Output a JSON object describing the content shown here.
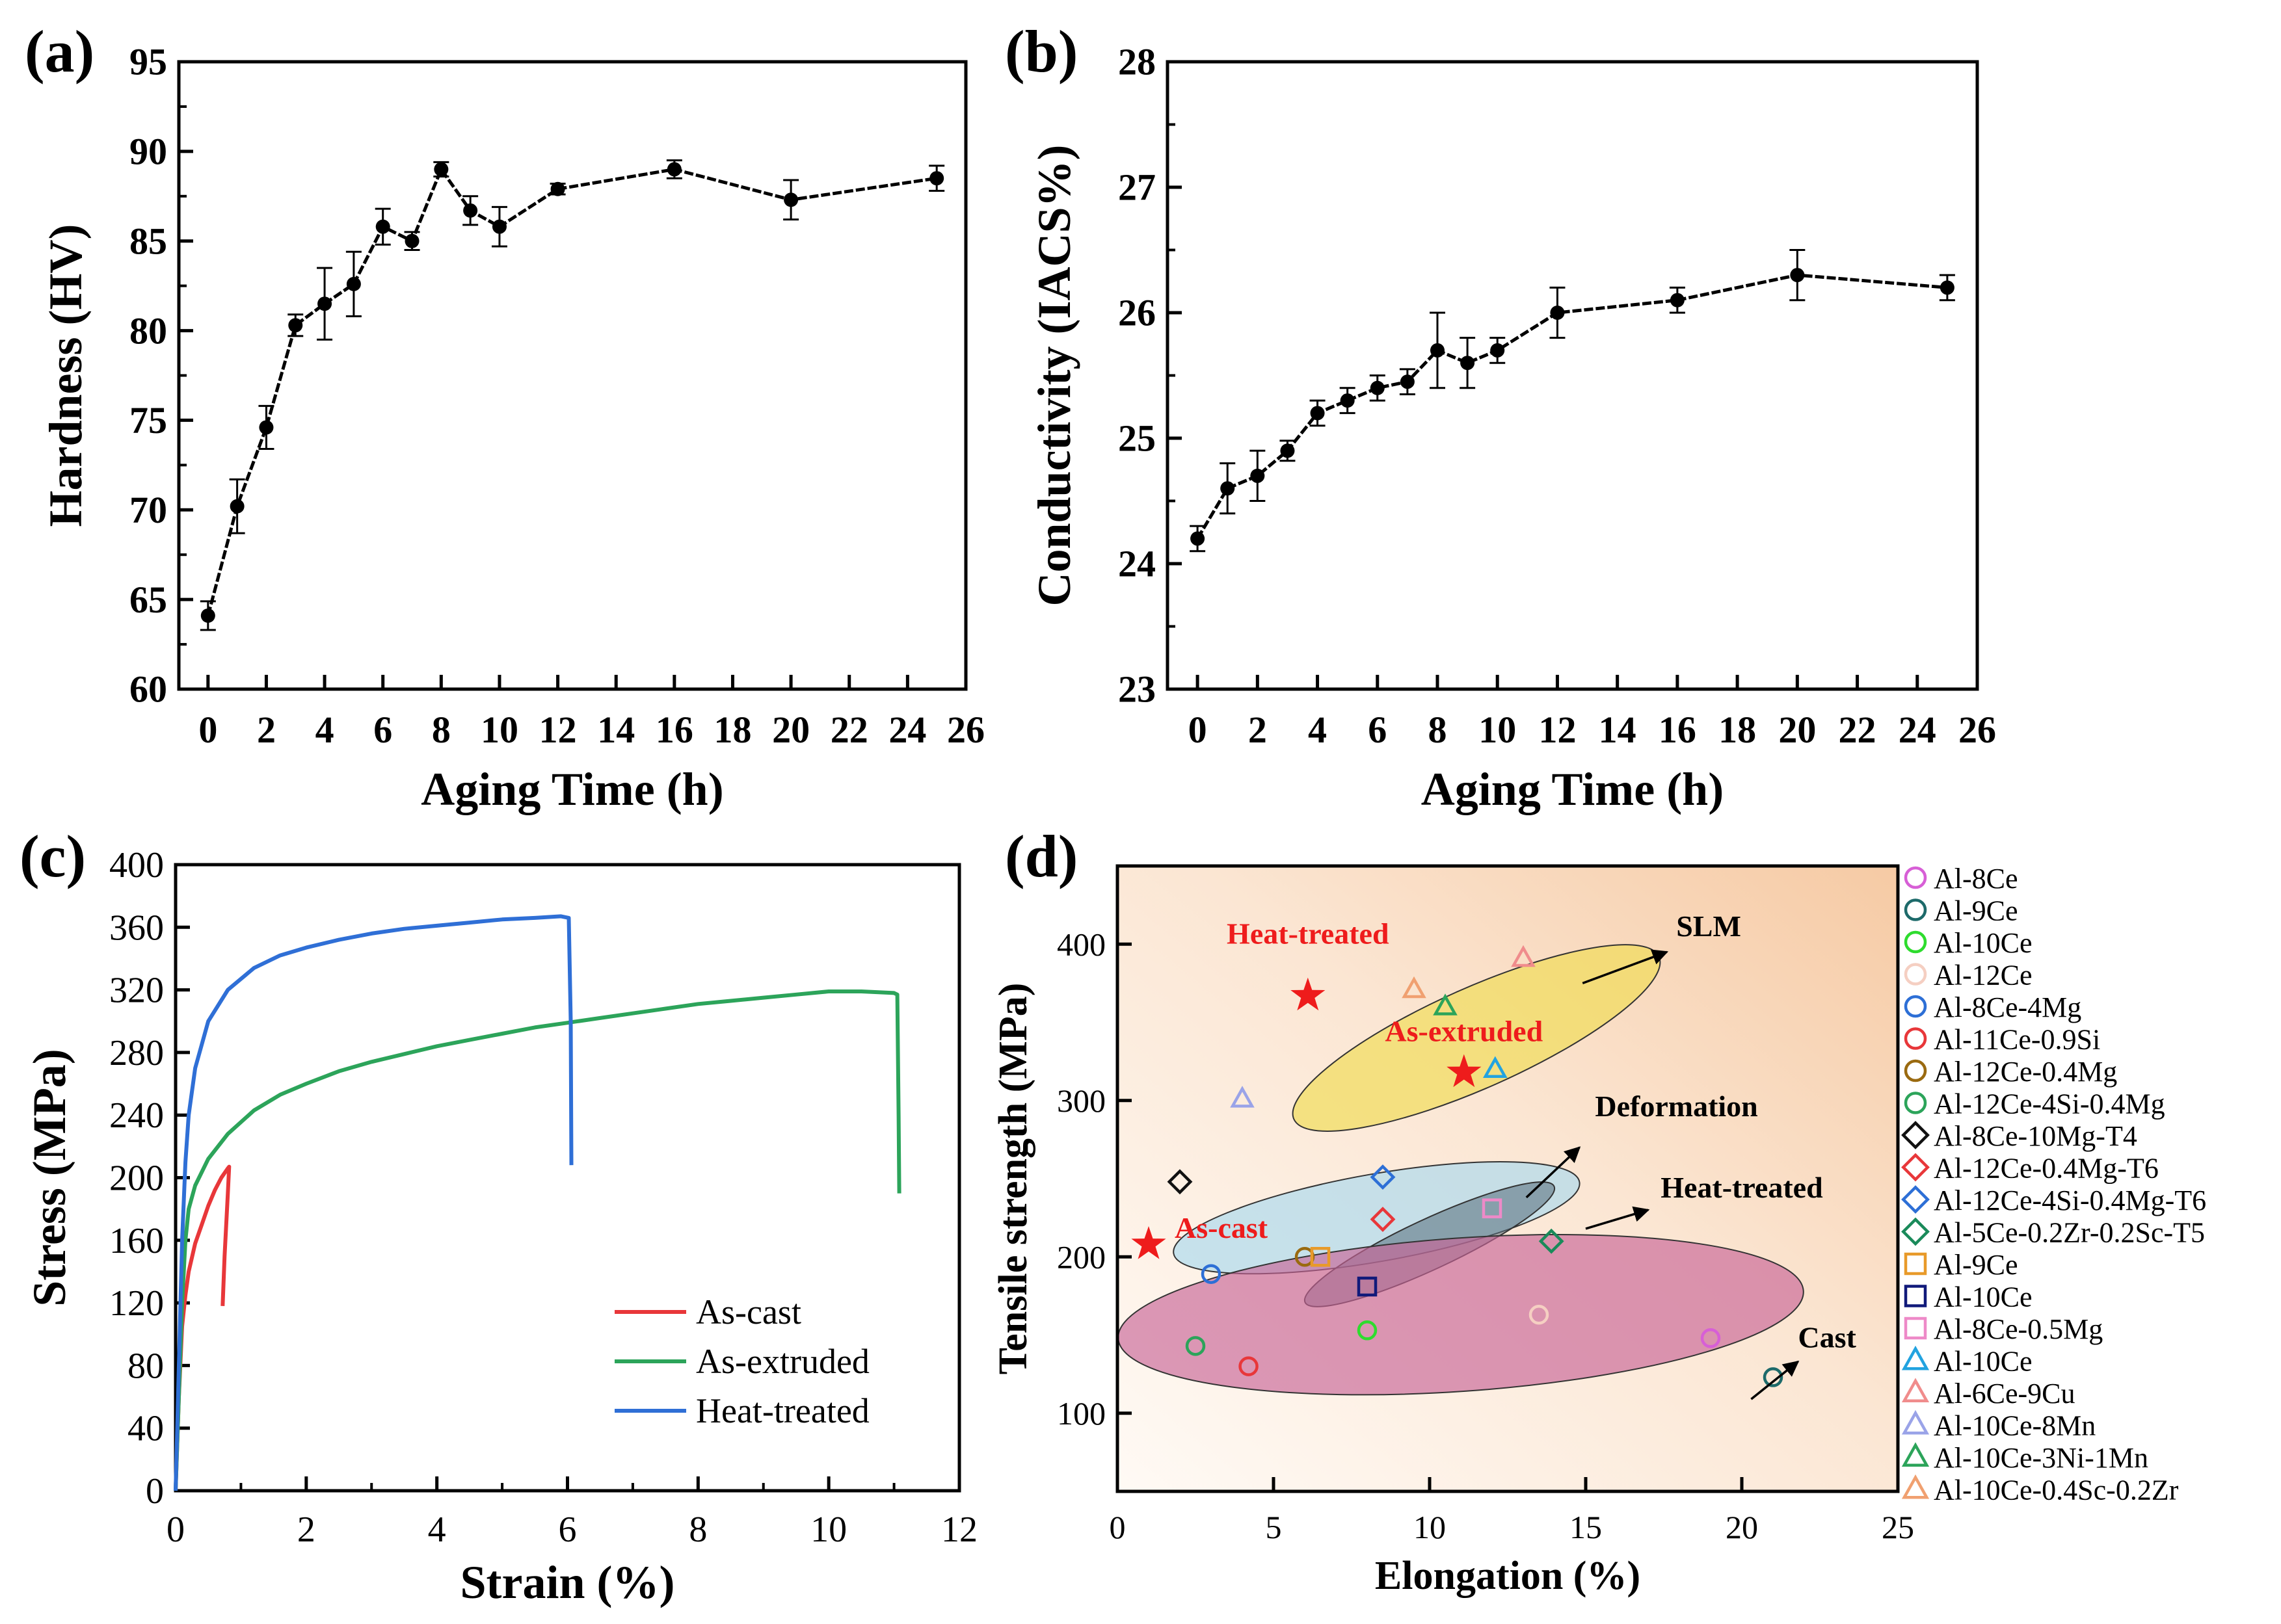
{
  "chart_data": [
    {
      "panel": "(a)",
      "type": "line",
      "xlabel": "Aging Time (h)",
      "ylabel": "Hardness (HV)",
      "xlim": [
        -1,
        26
      ],
      "ylim": [
        60,
        95
      ],
      "xticks": [
        0,
        2,
        4,
        6,
        8,
        10,
        12,
        14,
        16,
        18,
        20,
        22,
        24,
        26
      ],
      "yticks": [
        60,
        65,
        70,
        75,
        80,
        85,
        90,
        95
      ],
      "x": [
        0,
        1,
        2,
        3,
        4,
        5,
        6,
        7,
        8,
        9,
        10,
        12,
        16,
        20,
        25
      ],
      "y": [
        64.1,
        70.2,
        74.6,
        80.3,
        81.5,
        82.6,
        85.8,
        85.0,
        89.0,
        86.7,
        85.8,
        87.9,
        89.0,
        87.3,
        88.5
      ],
      "err": [
        0.8,
        1.5,
        1.2,
        0.6,
        2.0,
        1.8,
        1.0,
        0.5,
        0.4,
        0.8,
        1.1,
        0.3,
        0.5,
        1.1,
        0.7
      ]
    },
    {
      "panel": "(b)",
      "type": "line",
      "xlabel": "Aging Time (h)",
      "ylabel": "Conductivity (IACS%)",
      "xlim": [
        -1,
        26
      ],
      "ylim": [
        23,
        28
      ],
      "xticks": [
        0,
        2,
        4,
        6,
        8,
        10,
        12,
        14,
        16,
        18,
        20,
        22,
        24,
        26
      ],
      "yticks": [
        23,
        24,
        25,
        26,
        27,
        28
      ],
      "x": [
        0,
        1,
        2,
        3,
        4,
        5,
        6,
        7,
        8,
        9,
        10,
        12,
        16,
        20,
        25
      ],
      "y": [
        24.2,
        24.6,
        24.7,
        24.9,
        25.2,
        25.3,
        25.4,
        25.45,
        25.7,
        25.6,
        25.7,
        26.0,
        26.1,
        26.3,
        26.2
      ],
      "err": [
        0.1,
        0.2,
        0.2,
        0.08,
        0.1,
        0.1,
        0.1,
        0.1,
        0.3,
        0.2,
        0.1,
        0.2,
        0.1,
        0.2,
        0.1
      ]
    },
    {
      "panel": "(c)",
      "type": "line",
      "xlabel": "Strain (%)",
      "ylabel": "Stress (MPa)",
      "xlim": [
        0,
        12
      ],
      "ylim": [
        0,
        400
      ],
      "xticks": [
        0,
        2,
        4,
        6,
        8,
        10,
        12
      ],
      "yticks": [
        0,
        40,
        80,
        120,
        160,
        200,
        240,
        280,
        320,
        360,
        400
      ],
      "series": [
        {
          "name": "As-cast",
          "color": "#e8373a",
          "points": [
            [
              0,
              0
            ],
            [
              0.05,
              60
            ],
            [
              0.1,
              105
            ],
            [
              0.15,
              125
            ],
            [
              0.2,
              140
            ],
            [
              0.3,
              158
            ],
            [
              0.4,
              170
            ],
            [
              0.5,
              182
            ],
            [
              0.6,
              192
            ],
            [
              0.7,
              200
            ],
            [
              0.8,
              206
            ],
            [
              0.82,
              207
            ],
            [
              0.8,
              190
            ],
            [
              0.75,
              150
            ],
            [
              0.72,
              118
            ]
          ]
        },
        {
          "name": "As-extruded",
          "color": "#2ca45a",
          "points": [
            [
              0,
              0
            ],
            [
              0.05,
              60
            ],
            [
              0.1,
              120
            ],
            [
              0.15,
              160
            ],
            [
              0.2,
              180
            ],
            [
              0.3,
              195
            ],
            [
              0.5,
              212
            ],
            [
              0.8,
              228
            ],
            [
              1.2,
              243
            ],
            [
              1.6,
              253
            ],
            [
              2,
              260
            ],
            [
              2.5,
              268
            ],
            [
              3,
              274
            ],
            [
              3.5,
              279
            ],
            [
              4,
              284
            ],
            [
              4.5,
              288
            ],
            [
              5,
              292
            ],
            [
              5.5,
              296
            ],
            [
              6,
              299
            ],
            [
              6.5,
              302
            ],
            [
              7,
              305
            ],
            [
              7.5,
              308
            ],
            [
              8,
              311
            ],
            [
              8.5,
              313
            ],
            [
              9,
              315
            ],
            [
              9.5,
              317
            ],
            [
              10,
              319
            ],
            [
              10.5,
              319
            ],
            [
              11,
              318
            ],
            [
              11.05,
              317
            ],
            [
              11.07,
              240
            ],
            [
              11.08,
              190
            ]
          ]
        },
        {
          "name": "Heat-treated",
          "color": "#2f6fd6",
          "points": [
            [
              0,
              0
            ],
            [
              0.05,
              80
            ],
            [
              0.1,
              160
            ],
            [
              0.15,
              210
            ],
            [
              0.2,
              240
            ],
            [
              0.3,
              270
            ],
            [
              0.5,
              300
            ],
            [
              0.8,
              320
            ],
            [
              1.2,
              334
            ],
            [
              1.6,
              342
            ],
            [
              2,
              347
            ],
            [
              2.5,
              352
            ],
            [
              3,
              356
            ],
            [
              3.5,
              359
            ],
            [
              4,
              361
            ],
            [
              4.5,
              363
            ],
            [
              5,
              365
            ],
            [
              5.5,
              366
            ],
            [
              5.9,
              367
            ],
            [
              6.02,
              366
            ],
            [
              6.05,
              300
            ],
            [
              6.06,
              208
            ]
          ]
        }
      ]
    },
    {
      "panel": "(d)",
      "type": "scatter",
      "xlabel": "Elongation (%)",
      "ylabel": "Tensile strength (MPa)",
      "xlim": [
        0,
        25
      ],
      "ylim": [
        50,
        450
      ],
      "xticks": [
        0,
        5,
        10,
        15,
        20,
        25
      ],
      "yticks": [
        100,
        200,
        300,
        400
      ],
      "regions": [
        {
          "label": "SLM",
          "cx": 11.5,
          "cy": 340,
          "rx": 6.4,
          "ry": 32,
          "angle": -24,
          "color": "#f0dc52"
        },
        {
          "label": "Deformation",
          "cx": 8.3,
          "cy": 225,
          "rx": 6.6,
          "ry": 28,
          "angle": -10,
          "color": "#a9d8ee"
        },
        {
          "label": "Heat-treated",
          "cx": 10,
          "cy": 208,
          "rx": 4.4,
          "ry": 16,
          "angle": -25,
          "color": "#556b7a"
        },
        {
          "label": "Cast",
          "cx": 11,
          "cy": 163,
          "rx": 11,
          "ry": 49,
          "angle": -4,
          "color": "#c86496"
        }
      ],
      "stars": [
        {
          "label": "Heat-treated",
          "x": 6.1,
          "y": 367
        },
        {
          "label": "As-extruded",
          "x": 11.1,
          "y": 318
        },
        {
          "label": "As-cast",
          "x": 1.0,
          "y": 208
        }
      ],
      "legend": [
        {
          "label": "Al-8Ce",
          "marker": "circle",
          "color": "#d75fd6",
          "points": [
            [
              19,
              148
            ]
          ]
        },
        {
          "label": "Al-9Ce",
          "marker": "circle",
          "color": "#1d6a6a",
          "points": [
            [
              21,
              123
            ]
          ]
        },
        {
          "label": "Al-10Ce",
          "marker": "circle",
          "color": "#2edc2e",
          "points": [
            [
              8,
              153
            ]
          ]
        },
        {
          "label": "Al-12Ce",
          "marker": "circle",
          "color": "#f5cfc2",
          "points": [
            [
              13.5,
              163
            ]
          ]
        },
        {
          "label": "Al-8Ce-4Mg",
          "marker": "circle",
          "color": "#2d6fd6",
          "points": [
            [
              3,
              189
            ]
          ]
        },
        {
          "label": "Al-11Ce-0.9Si",
          "marker": "circle",
          "color": "#e8373a",
          "points": [
            [
              4.2,
              130
            ]
          ]
        },
        {
          "label": "Al-12Ce-0.4Mg",
          "marker": "circle",
          "color": "#9a6a10",
          "points": [
            [
              6,
              200
            ]
          ]
        },
        {
          "label": "Al-12Ce-4Si-0.4Mg",
          "marker": "circle",
          "color": "#2ca45a",
          "points": [
            [
              2.5,
              143
            ]
          ]
        },
        {
          "label": "Al-8Ce-10Mg-T4",
          "marker": "diamond",
          "color": "#111111",
          "points": [
            [
              2,
              248
            ]
          ]
        },
        {
          "label": "Al-12Ce-0.4Mg-T6",
          "marker": "diamond",
          "color": "#e8373a",
          "points": [
            [
              8.5,
              224
            ]
          ]
        },
        {
          "label": "Al-12Ce-4Si-0.4Mg-T6",
          "marker": "diamond",
          "color": "#2d6fd6",
          "points": [
            [
              8.5,
              251
            ]
          ]
        },
        {
          "label": "Al-5Ce-0.2Zr-0.2Sc-T5",
          "marker": "diamond",
          "color": "#1a8a5a",
          "points": [
            [
              13.9,
              210
            ]
          ]
        },
        {
          "label": "Al-9Ce",
          "marker": "square",
          "color": "#e89a2a",
          "points": [
            [
              6.5,
              200
            ]
          ]
        },
        {
          "label": "Al-10Ce",
          "marker": "square",
          "color": "#111a7a",
          "points": [
            [
              8,
              181
            ]
          ]
        },
        {
          "label": "Al-8Ce-0.5Mg",
          "marker": "square",
          "color": "#ee8ac8",
          "points": [
            [
              12,
              231
            ]
          ]
        },
        {
          "label": "Al-10Ce",
          "marker": "triangle",
          "color": "#22a3e0",
          "points": [
            [
              12.1,
              320
            ]
          ]
        },
        {
          "label": "Al-6Ce-9Cu",
          "marker": "triangle",
          "color": "#f08c8c",
          "points": [
            [
              13,
              391
            ]
          ]
        },
        {
          "label": "Al-10Ce-8Mn",
          "marker": "triangle",
          "color": "#9aa3e8",
          "points": [
            [
              4,
              301
            ]
          ]
        },
        {
          "label": "Al-10Ce-3Ni-1Mn",
          "marker": "triangle",
          "color": "#2ca45a",
          "points": [
            [
              10.5,
              360
            ]
          ]
        },
        {
          "label": "Al-10Ce-0.4Sc-0.2Zr",
          "marker": "triangle",
          "color": "#f0a070",
          "points": [
            [
              9.5,
              371
            ]
          ]
        }
      ]
    }
  ]
}
